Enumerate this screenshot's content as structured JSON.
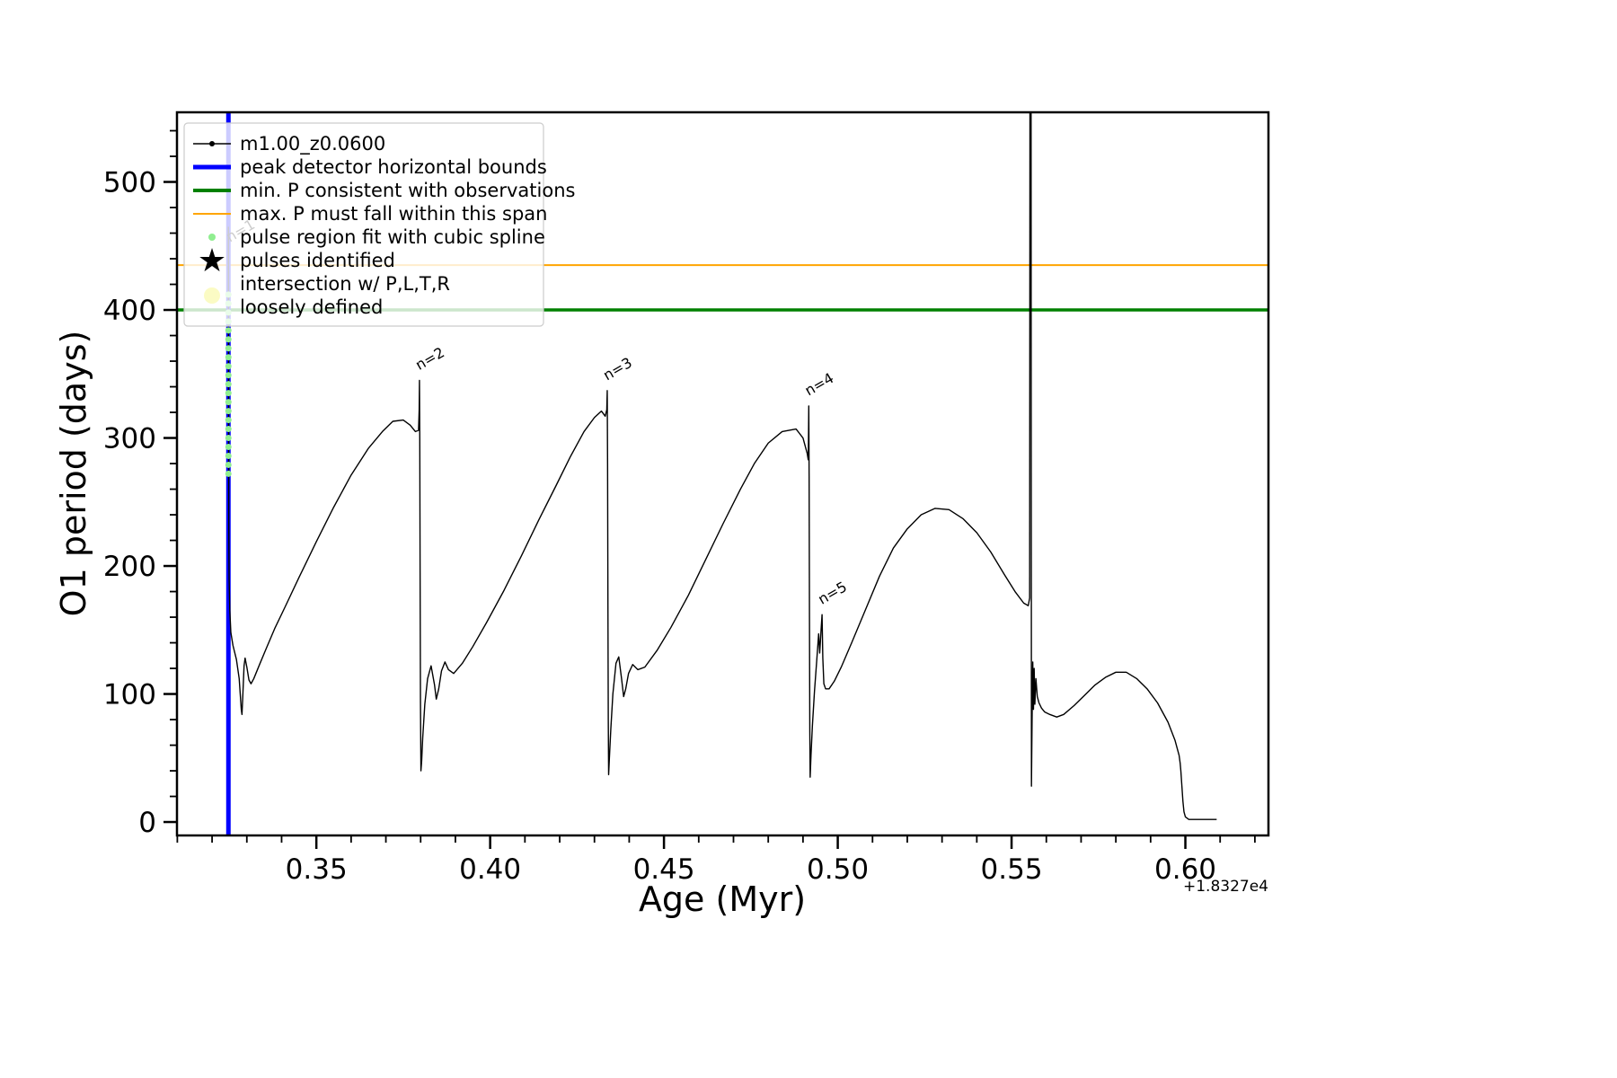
{
  "chart_data": {
    "type": "line",
    "title": "",
    "xlabel": "Age (Myr)",
    "ylabel": "O1 period (days)",
    "x_offset_text": "+1.8327e4",
    "xlim": [
      0.3099,
      0.6239
    ],
    "ylim": [
      -10.5,
      554.4
    ],
    "grid": false,
    "legend_position": "upper left",
    "xticks": {
      "values": [
        0.35,
        0.4,
        0.45,
        0.5,
        0.55,
        0.6
      ],
      "labels": [
        "0.35",
        "0.40",
        "0.45",
        "0.50",
        "0.55",
        "0.60"
      ]
    },
    "yticks": {
      "values": [
        0,
        100,
        200,
        300,
        400,
        500
      ],
      "labels": [
        "0",
        "100",
        "200",
        "300",
        "400",
        "500"
      ]
    },
    "x_minor_step": 0.01,
    "y_minor_step": 20,
    "hlines": [
      {
        "name": "min-p-consistent-with-observations",
        "y": 400,
        "color": "#008000",
        "lw": 3.5
      },
      {
        "name": "max-p-must-fall-within-this-span",
        "y": 435,
        "color": "#ffa500",
        "lw": 2
      }
    ],
    "vlines": [
      {
        "name": "peak-detector-horizontal-bounds",
        "x": 0.3247,
        "color": "#0000ff",
        "lw": 5
      }
    ],
    "series": [
      {
        "name": "m1.00_z0.0600",
        "color": "#000000",
        "lw": 1.4,
        "points": [
          [
            0.3247,
            465
          ],
          [
            0.32473,
            380
          ],
          [
            0.32476,
            300
          ],
          [
            0.3248,
            235
          ],
          [
            0.3249,
            190
          ],
          [
            0.3251,
            165
          ],
          [
            0.3254,
            148
          ],
          [
            0.326,
            138
          ],
          [
            0.327,
            127
          ],
          [
            0.3278,
            112
          ],
          [
            0.3284,
            88
          ],
          [
            0.3286,
            84
          ],
          [
            0.3288,
            96
          ],
          [
            0.3292,
            122
          ],
          [
            0.3295,
            128
          ],
          [
            0.33,
            121
          ],
          [
            0.3306,
            111
          ],
          [
            0.3312,
            108
          ],
          [
            0.332,
            112
          ],
          [
            0.3335,
            122
          ],
          [
            0.3355,
            135
          ],
          [
            0.338,
            151
          ],
          [
            0.341,
            168
          ],
          [
            0.345,
            191
          ],
          [
            0.35,
            219
          ],
          [
            0.355,
            246
          ],
          [
            0.36,
            271
          ],
          [
            0.365,
            292
          ],
          [
            0.369,
            305
          ],
          [
            0.372,
            313
          ],
          [
            0.375,
            314
          ],
          [
            0.377,
            310
          ],
          [
            0.3785,
            305
          ],
          [
            0.3794,
            306
          ],
          [
            0.37958,
            322
          ],
          [
            0.37966,
            345
          ],
          [
            0.37975,
            300
          ],
          [
            0.37985,
            190
          ],
          [
            0.37995,
            95
          ],
          [
            0.38008,
            40
          ],
          [
            0.3803,
            48
          ],
          [
            0.3806,
            66
          ],
          [
            0.3812,
            92
          ],
          [
            0.382,
            112
          ],
          [
            0.383,
            122
          ],
          [
            0.384,
            107
          ],
          [
            0.3845,
            96
          ],
          [
            0.3852,
            104
          ],
          [
            0.386,
            118
          ],
          [
            0.387,
            125
          ],
          [
            0.388,
            119
          ],
          [
            0.3895,
            116
          ],
          [
            0.392,
            124
          ],
          [
            0.395,
            137
          ],
          [
            0.399,
            156
          ],
          [
            0.404,
            181
          ],
          [
            0.409,
            208
          ],
          [
            0.414,
            236
          ],
          [
            0.419,
            263
          ],
          [
            0.423,
            285
          ],
          [
            0.427,
            305
          ],
          [
            0.43,
            316
          ],
          [
            0.432,
            321
          ],
          [
            0.4331,
            317
          ],
          [
            0.43355,
            322
          ],
          [
            0.43368,
            337
          ],
          [
            0.43378,
            280
          ],
          [
            0.43388,
            170
          ],
          [
            0.43398,
            80
          ],
          [
            0.43408,
            37
          ],
          [
            0.4343,
            50
          ],
          [
            0.4347,
            72
          ],
          [
            0.4353,
            100
          ],
          [
            0.4362,
            124
          ],
          [
            0.437,
            129
          ],
          [
            0.4378,
            112
          ],
          [
            0.4384,
            98
          ],
          [
            0.439,
            104
          ],
          [
            0.4398,
            116
          ],
          [
            0.441,
            123
          ],
          [
            0.4425,
            119
          ],
          [
            0.4445,
            121
          ],
          [
            0.448,
            134
          ],
          [
            0.452,
            152
          ],
          [
            0.457,
            177
          ],
          [
            0.462,
            205
          ],
          [
            0.467,
            233
          ],
          [
            0.472,
            260
          ],
          [
            0.476,
            280
          ],
          [
            0.48,
            296
          ],
          [
            0.484,
            305
          ],
          [
            0.488,
            307
          ],
          [
            0.49,
            300
          ],
          [
            0.4912,
            288
          ],
          [
            0.4915,
            283
          ],
          [
            0.49158,
            300
          ],
          [
            0.49166,
            325
          ],
          [
            0.49176,
            270
          ],
          [
            0.49186,
            160
          ],
          [
            0.49196,
            70
          ],
          [
            0.49206,
            35
          ],
          [
            0.4923,
            52
          ],
          [
            0.4927,
            75
          ],
          [
            0.4933,
            102
          ],
          [
            0.494,
            128
          ],
          [
            0.4945,
            147
          ],
          [
            0.4948,
            132
          ],
          [
            0.4952,
            150
          ],
          [
            0.49548,
            162
          ],
          [
            0.4957,
            128
          ],
          [
            0.496,
            108
          ],
          [
            0.4965,
            104
          ],
          [
            0.4975,
            104
          ],
          [
            0.499,
            110
          ],
          [
            0.501,
            121
          ],
          [
            0.504,
            140
          ],
          [
            0.508,
            166
          ],
          [
            0.512,
            192
          ],
          [
            0.516,
            214
          ],
          [
            0.52,
            229
          ],
          [
            0.524,
            240
          ],
          [
            0.528,
            245
          ],
          [
            0.532,
            244
          ],
          [
            0.536,
            237
          ],
          [
            0.54,
            226
          ],
          [
            0.544,
            211
          ],
          [
            0.548,
            193
          ],
          [
            0.551,
            180
          ],
          [
            0.5535,
            171
          ],
          [
            0.5548,
            169
          ],
          [
            0.5552,
            175
          ],
          [
            0.5553,
            600
          ],
          [
            0.5556,
            600
          ],
          [
            0.55572,
            28
          ],
          [
            0.5559,
            80
          ],
          [
            0.5561,
            125
          ],
          [
            0.5563,
            88
          ],
          [
            0.5565,
            120
          ],
          [
            0.5567,
            92
          ],
          [
            0.557,
            112
          ],
          [
            0.5574,
            98
          ],
          [
            0.5579,
            93
          ],
          [
            0.5586,
            89
          ],
          [
            0.5595,
            86
          ],
          [
            0.561,
            84
          ],
          [
            0.563,
            82
          ],
          [
            0.565,
            84
          ],
          [
            0.568,
            91
          ],
          [
            0.571,
            99
          ],
          [
            0.574,
            107
          ],
          [
            0.577,
            113
          ],
          [
            0.58,
            117
          ],
          [
            0.583,
            117
          ],
          [
            0.586,
            112
          ],
          [
            0.589,
            104
          ],
          [
            0.592,
            93
          ],
          [
            0.595,
            78
          ],
          [
            0.597,
            64
          ],
          [
            0.5982,
            52
          ],
          [
            0.5985,
            46
          ],
          [
            0.5987,
            40
          ],
          [
            0.599,
            28
          ],
          [
            0.5993,
            16
          ],
          [
            0.5996,
            8
          ],
          [
            0.6,
            4
          ],
          [
            0.601,
            2
          ],
          [
            0.603,
            2
          ],
          [
            0.606,
            2
          ],
          [
            0.609,
            2
          ]
        ]
      }
    ],
    "pulse_fit_dots": {
      "name": "pulse-region-fit-with-cubic-spline",
      "color": "#90ee90",
      "x": 0.3247,
      "size": 7,
      "y_values": [
        272,
        279,
        286,
        293,
        300,
        307,
        314,
        321,
        328,
        335,
        342,
        349,
        356,
        363,
        370,
        377,
        384,
        391,
        398,
        405,
        412
      ]
    },
    "annotations": [
      {
        "text": "n=1",
        "x": 0.3252,
        "y": 448
      },
      {
        "text": "n=2",
        "x": 0.3797,
        "y": 348
      },
      {
        "text": "n=3",
        "x": 0.4337,
        "y": 340
      },
      {
        "text": "n=4",
        "x": 0.4917,
        "y": 328
      },
      {
        "text": "n=5",
        "x": 0.4955,
        "y": 165
      }
    ],
    "legend": {
      "items": [
        {
          "label": "m1.00_z0.0600",
          "type": "line-dot",
          "color": "#000000",
          "lw": 1.5
        },
        {
          "label": "peak detector horizontal bounds",
          "type": "line",
          "color": "#0000ff",
          "lw": 5
        },
        {
          "label": "min. P consistent with observations",
          "type": "line",
          "color": "#008000",
          "lw": 4
        },
        {
          "label": "max. P must fall within this span",
          "type": "line",
          "color": "#ffa500",
          "lw": 2
        },
        {
          "label": "pulse region fit with cubic spline",
          "type": "dot",
          "color": "#90ee90",
          "size": 8
        },
        {
          "label": "pulses identified",
          "type": "star",
          "color": "#ff0000",
          "size": 36
        },
        {
          "label": "intersection w/ P,L,T,R\nloosely defined",
          "type": "dot",
          "color": "#fbfbc4",
          "size": 18
        }
      ]
    }
  }
}
